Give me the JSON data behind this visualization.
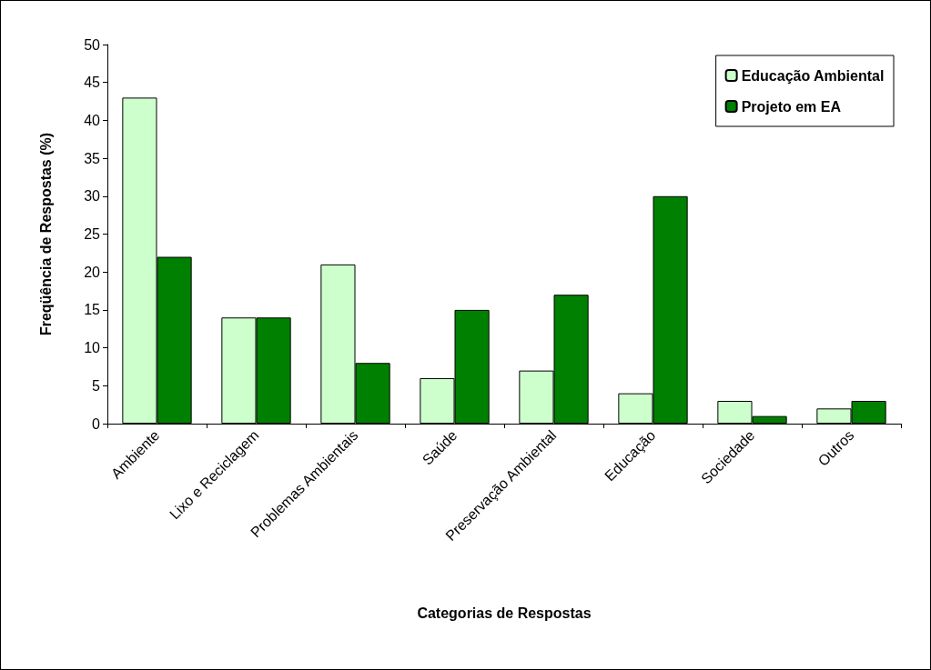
{
  "chart_data": {
    "type": "bar",
    "xlabel": "Categorias de Respostas",
    "ylabel": "Freqüência de Respostas (%)",
    "categories": [
      "Ambiente",
      "Lixo e Reciclagem",
      "Problemas Ambientais",
      "Saúde",
      "Preservação Ambiental",
      "Educação",
      "Sociedade",
      "Outros"
    ],
    "series": [
      {
        "name": "Educação Ambiental",
        "color": "#ccffcc",
        "values": [
          43,
          14,
          21,
          6,
          7,
          4,
          3,
          2
        ]
      },
      {
        "name": "Projeto em EA",
        "color": "#008000",
        "values": [
          22,
          14,
          8,
          15,
          17,
          30,
          1,
          3
        ]
      }
    ],
    "ylim": [
      0,
      50
    ],
    "yticks": [
      0,
      5,
      10,
      15,
      20,
      25,
      30,
      35,
      40,
      45,
      50
    ],
    "grid": false,
    "legend": "top right"
  }
}
